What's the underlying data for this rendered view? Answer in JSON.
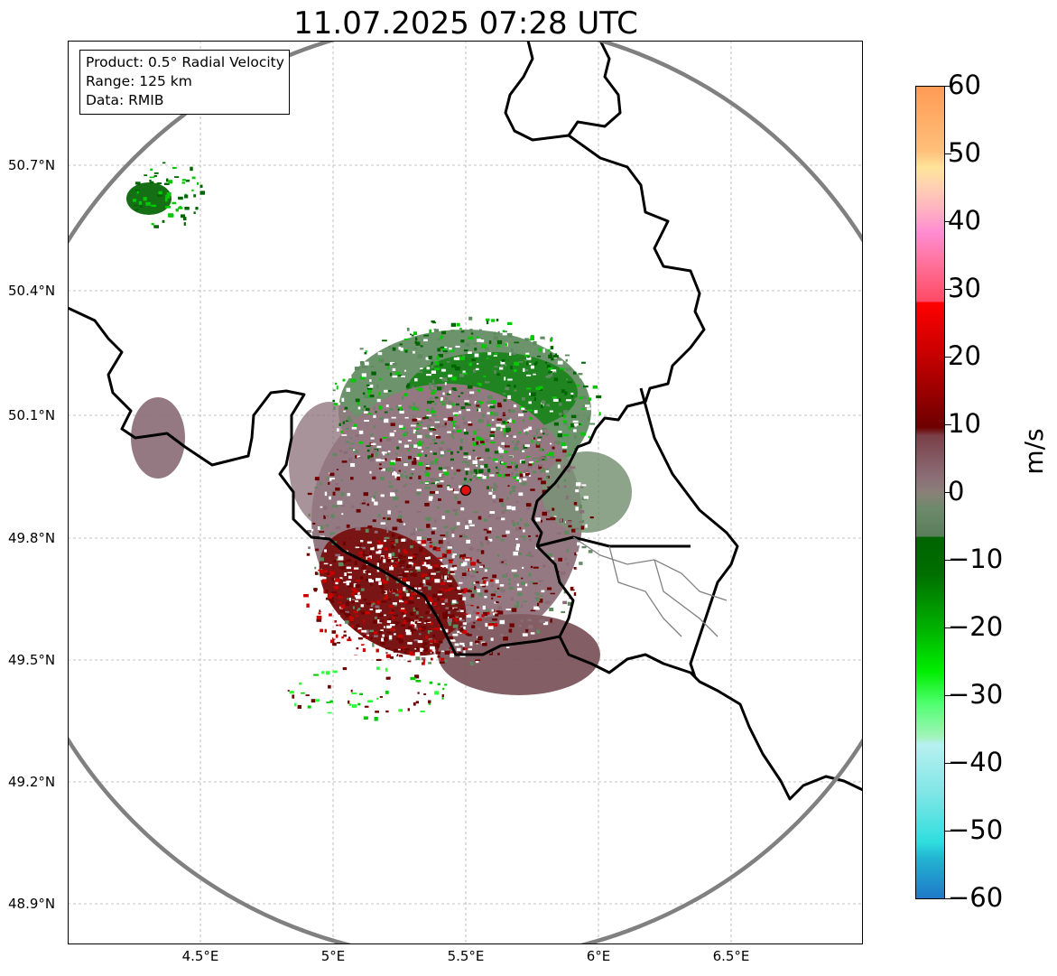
{
  "title": "11.07.2025 07:28 UTC",
  "info_box": {
    "product": "Product: 0.5° Radial Velocity",
    "range": "Range: 125 km",
    "source": "Data: RMIB"
  },
  "lat_ticks": [
    "50.7°N",
    "50.4°N",
    "50.1°N",
    "49.8°N",
    "49.5°N",
    "49.2°N",
    "48.9°N"
  ],
  "lon_ticks": [
    "4.5°E",
    "5°E",
    "5.5°E",
    "6°E",
    "6.5°E"
  ],
  "colorbar": {
    "label": "m/s",
    "ticks": [
      "60",
      "50",
      "40",
      "30",
      "20",
      "10",
      "0",
      "−10",
      "−20",
      "−30",
      "−40",
      "−50",
      "−60"
    ],
    "colors": {
      "neg60": "#1f78c8",
      "neg50": "#2ad9dd",
      "neg40": "#a8ecf0",
      "neg30": "#2aff3a",
      "neg20": "#05c805",
      "neg10": "#006400",
      "zero_neg": "#5f8a5f",
      "zero_pos": "#8b6d77",
      "pos10": "#6e0000",
      "pos20": "#c80000",
      "pos30": "#ff5a78",
      "pos40": "#ff8cd2",
      "pos50": "#ffe49a",
      "pos60": "#ff9a55"
    }
  },
  "radar_site": {
    "lon": 5.5,
    "lat": 49.91,
    "marker_color": "#e01010"
  },
  "map_extent": {
    "lon_min": 4.0,
    "lon_max": 7.0,
    "lat_min": 48.8,
    "lat_max": 50.98
  },
  "range_ring_color": "#808080"
}
